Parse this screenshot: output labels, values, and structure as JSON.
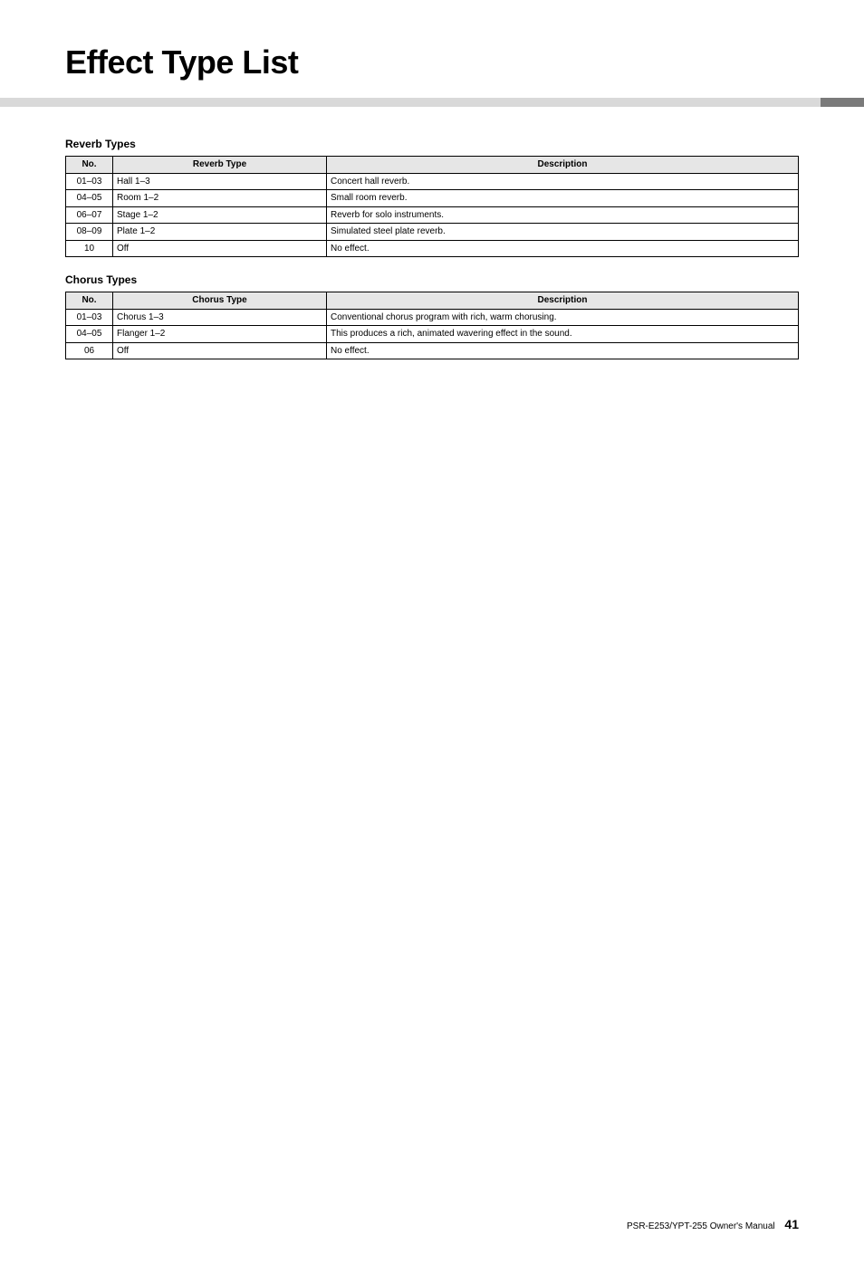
{
  "page": {
    "title": "Effect Type List",
    "footer_text": "PSR-E253/YPT-255  Owner's Manual",
    "page_number": "41"
  },
  "stripe": {
    "grey_color": "#d9d9d9",
    "tab_color": "#7a7a7a"
  },
  "tables": {
    "header_bg": "#e6e6e6",
    "border_color": "#000000",
    "font_size_pt": 10
  },
  "reverb": {
    "heading": "Reverb Types",
    "columns": {
      "no": "No.",
      "type": "Reverb Type",
      "desc": "Description"
    },
    "rows": [
      {
        "no": "01–03",
        "type": "Hall 1–3",
        "desc": "Concert hall reverb."
      },
      {
        "no": "04–05",
        "type": "Room 1–2",
        "desc": "Small room reverb."
      },
      {
        "no": "06–07",
        "type": "Stage 1–2",
        "desc": "Reverb for solo instruments."
      },
      {
        "no": "08–09",
        "type": "Plate 1–2",
        "desc": "Simulated steel plate reverb."
      },
      {
        "no": "10",
        "type": "Off",
        "desc": "No effect."
      }
    ]
  },
  "chorus": {
    "heading": "Chorus Types",
    "columns": {
      "no": "No.",
      "type": "Chorus Type",
      "desc": "Description"
    },
    "rows": [
      {
        "no": "01–03",
        "type": "Chorus 1–3",
        "desc": "Conventional chorus program with rich, warm chorusing."
      },
      {
        "no": "04–05",
        "type": "Flanger 1–2",
        "desc": "This produces a rich, animated wavering effect in the sound."
      },
      {
        "no": "06",
        "type": "Off",
        "desc": "No effect."
      }
    ]
  }
}
